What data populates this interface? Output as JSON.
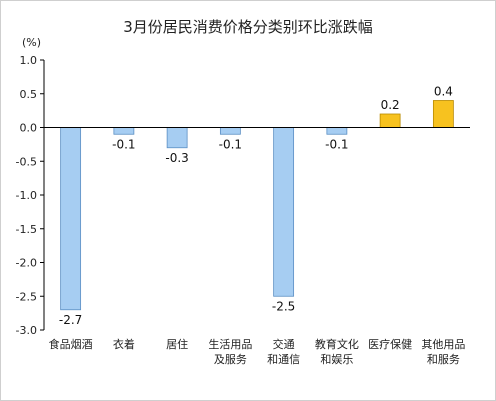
{
  "chart_data": {
    "type": "bar",
    "title": "3月份居民消费价格分类别环比涨跌幅",
    "unit": "(%)",
    "ylim": [
      -3.0,
      1.0
    ],
    "yticks": [
      "1.0",
      "0.5",
      "0.0",
      "-0.5",
      "-1.0",
      "-1.5",
      "-2.0",
      "-2.5",
      "-3.0"
    ],
    "ytick_values": [
      1.0,
      0.5,
      0.0,
      -0.5,
      -1.0,
      -1.5,
      -2.0,
      -2.5,
      -3.0
    ],
    "grid": false,
    "categories": [
      [
        "食品烟酒"
      ],
      [
        "衣着"
      ],
      [
        "居住"
      ],
      [
        "生活用品",
        "及服务"
      ],
      [
        "交通",
        "和通信"
      ],
      [
        "教育文化",
        "和娱乐"
      ],
      [
        "医疗保健"
      ],
      [
        "其他用品",
        "和服务"
      ]
    ],
    "values": [
      -2.7,
      -0.1,
      -0.3,
      -0.1,
      -2.5,
      -0.1,
      0.2,
      0.4
    ],
    "value_labels": [
      "-2.7",
      "-0.1",
      "-0.3",
      "-0.1",
      "-2.5",
      "-0.1",
      "0.2",
      "0.4"
    ],
    "colors": {
      "negative": "#a6cdf2",
      "negative_border": "#5b8fc4",
      "positive": "#f7c21f",
      "positive_border": "#b88a00",
      "axis": "#000000"
    }
  }
}
